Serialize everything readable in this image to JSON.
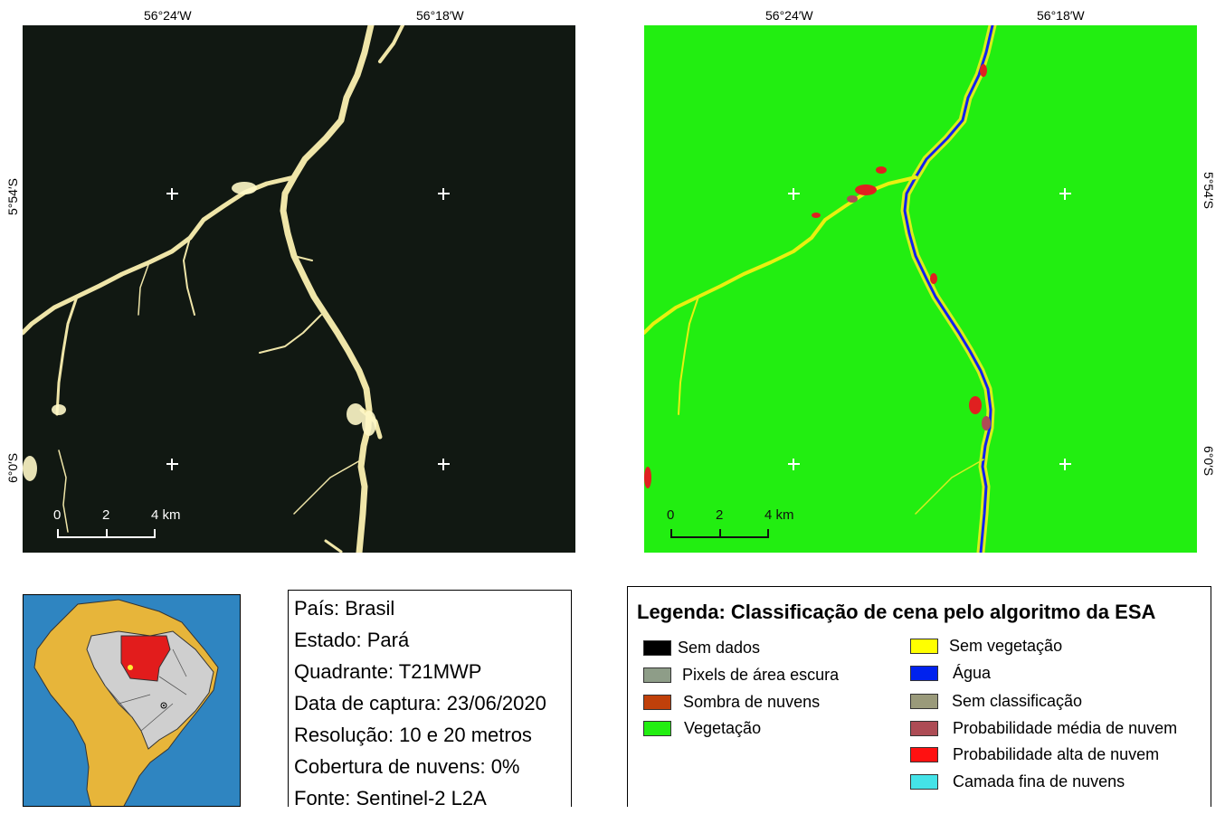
{
  "maps": {
    "top_lon_labels": [
      "56°24′W",
      "56°18′W"
    ],
    "left_lat_labels": [
      "5°54′S",
      "6°0′S"
    ],
    "right_lat_labels": [
      "5°54′S",
      "6°0′S"
    ],
    "scale_labels": [
      "0",
      "2",
      "4 km"
    ]
  },
  "info": {
    "lines": [
      "País: Brasil",
      "Estado: Pará",
      "Quadrante: T21MWP",
      "Data de captura: 23/06/2020",
      "Resolução: 10 e 20 metros",
      "Cobertura de nuvens: 0%",
      "Fonte: Sentinel-2 L2A"
    ]
  },
  "legend": {
    "title": "Legenda: Classificação de cena pelo algoritmo da ESA",
    "left_items": [
      {
        "label": "Sem dados",
        "color": "#000000"
      },
      {
        "label": "Pixels de área escura",
        "color": "#8e9d88"
      },
      {
        "label": "Sombra de nuvens",
        "color": "#c0400a"
      },
      {
        "label": "Vegetação",
        "color": "#22ee11"
      }
    ],
    "right_items": [
      {
        "label": "Sem vegetação",
        "color": "#ffff00"
      },
      {
        "label": "Água",
        "color": "#0022ee"
      },
      {
        "label": "Sem classificação",
        "color": "#9a9a7a"
      },
      {
        "label": "Probabilidade média de nuvem",
        "color": "#ad4c55"
      },
      {
        "label": "Probabilidade alta de nuvem",
        "color": "#ff1111"
      },
      {
        "label": "Camada fina de nuvens",
        "color": "#44e3e8"
      }
    ]
  }
}
